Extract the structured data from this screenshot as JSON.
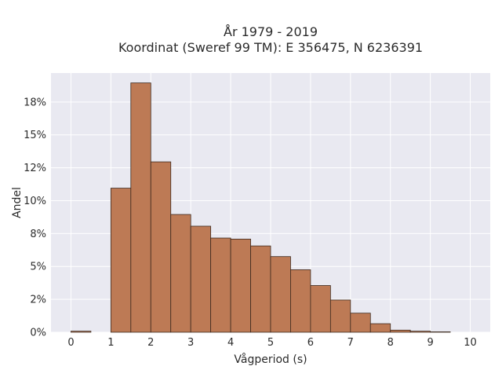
{
  "chart_data": {
    "type": "bar",
    "title_line1": "År 1979 - 2019",
    "title_line2": "Koordinat (Sweref 99 TM): E 356475, N 6236391",
    "xlabel": "Vågperiod (s)",
    "ylabel": "Andel",
    "xlim": [
      -0.5,
      10.5
    ],
    "ylim": [
      0,
      0.197
    ],
    "x_ticks": [
      0,
      1,
      2,
      3,
      4,
      5,
      6,
      7,
      8,
      9,
      10
    ],
    "x_tick_labels": [
      "0",
      "1",
      "2",
      "3",
      "4",
      "5",
      "6",
      "7",
      "8",
      "9",
      "10"
    ],
    "y_ticks": [
      0,
      0.025,
      0.05,
      0.075,
      0.1,
      0.125,
      0.15,
      0.175
    ],
    "y_tick_labels": [
      "0%",
      "2%",
      "5%",
      "8%",
      "10%",
      "12%",
      "15%",
      "18%"
    ],
    "bin_width": 0.5,
    "bins": [
      {
        "x0": 0.0,
        "value": 0.0008
      },
      {
        "x0": 1.0,
        "value": 0.1095
      },
      {
        "x0": 1.5,
        "value": 0.1895
      },
      {
        "x0": 2.0,
        "value": 0.1295
      },
      {
        "x0": 2.5,
        "value": 0.0895
      },
      {
        "x0": 3.0,
        "value": 0.0806
      },
      {
        "x0": 3.5,
        "value": 0.0716
      },
      {
        "x0": 4.0,
        "value": 0.0708
      },
      {
        "x0": 4.5,
        "value": 0.0656
      },
      {
        "x0": 5.0,
        "value": 0.0575
      },
      {
        "x0": 5.5,
        "value": 0.0475
      },
      {
        "x0": 6.0,
        "value": 0.0355
      },
      {
        "x0": 6.5,
        "value": 0.0245
      },
      {
        "x0": 7.0,
        "value": 0.0145
      },
      {
        "x0": 7.5,
        "value": 0.0065
      },
      {
        "x0": 8.0,
        "value": 0.0016
      },
      {
        "x0": 8.5,
        "value": 0.0008
      },
      {
        "x0": 9.0,
        "value": 0.0003
      }
    ],
    "grid": true,
    "colors": {
      "plot_bg": "#e9e9f1",
      "grid": "#ffffff",
      "bar": "#bd7a55",
      "bar_edge": "#3d2a1f"
    }
  }
}
